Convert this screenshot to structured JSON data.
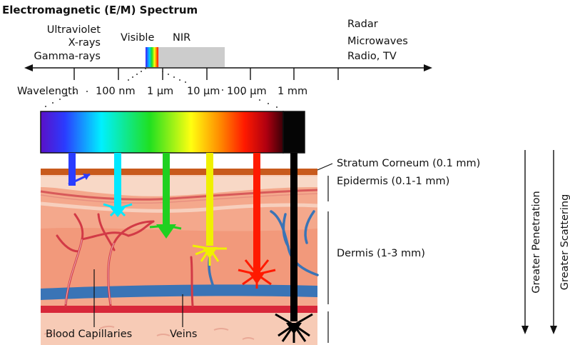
{
  "title": "Electromagnetic (E/M) Spectrum",
  "spectrum_axis": {
    "left_labels": [
      "Ultraviolet",
      "X-rays",
      "Gamma-rays"
    ],
    "right_labels": [
      "Radar",
      "Microwaves",
      "Radio, TV"
    ],
    "visible_label": "Visible",
    "nir_label": "NIR",
    "wavelength_label": "Wavelength",
    "tick_labels": [
      "100 nm",
      "1 µm",
      "10 µm",
      "100 µm",
      "1 mm"
    ]
  },
  "skin_layers": {
    "stratum_corneum": "Stratum Corneum (0.1 mm)",
    "epidermis": "Epidermis (0.1-1 mm)",
    "dermis": "Dermis (1-3 mm)"
  },
  "structures": {
    "capillaries": "Blood Capillaries",
    "veins": "Veins"
  },
  "trends": {
    "penetration": "Greater Penetration",
    "scattering": "Greater Scattering"
  },
  "colors": {
    "stratum": "#c85a1c",
    "epidermis": "#f6c6b0",
    "dermis": "#f1987a",
    "vein": "#3a74b6",
    "capillary": "#d23a46"
  }
}
